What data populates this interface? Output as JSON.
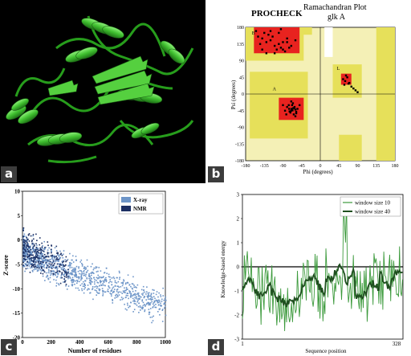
{
  "panels": {
    "a": {
      "label": "a"
    },
    "b": {
      "label": "b"
    },
    "c": {
      "label": "c"
    },
    "d": {
      "label": "d"
    }
  },
  "ramachandran": {
    "header": "PROCHECK",
    "title": "Ramachandran Plot",
    "subtitle": "glk A",
    "xlabel": "Phi (degrees)",
    "ylabel": "Psi (degrees)",
    "xticks": [
      "-180",
      "-135",
      "-90",
      "-45",
      "0",
      "45",
      "90",
      "135",
      "180"
    ],
    "yticks": [
      "180",
      "135",
      "90",
      "45",
      "0",
      "-45",
      "-90",
      "-135",
      "-180"
    ],
    "region_labels": [
      "B",
      "A",
      "L"
    ],
    "colors": {
      "core": "#e8231f",
      "allowed": "#e6e05a",
      "generous": "#f4f0b6",
      "points": "#000000"
    }
  },
  "zscore": {
    "ylabel": "Z-score",
    "xlabel": "Number of residues",
    "yticks": [
      "10",
      "5",
      "0",
      "-5",
      "-10",
      "-15",
      "-20"
    ],
    "xticks": [
      "0",
      "200",
      "400",
      "600",
      "800",
      "1000"
    ],
    "legend": [
      {
        "name": "X-ray",
        "color": "#6d95c8"
      },
      {
        "name": "NMR",
        "color": "#1c2f63"
      }
    ]
  },
  "energy": {
    "ylabel": "Knowledge-based energy",
    "xlabel": "Sequence position",
    "yticks": [
      "3",
      "2",
      "1",
      "0",
      "-1",
      "-2",
      "-3"
    ],
    "xticks": [
      "1",
      "328"
    ],
    "legend": [
      {
        "name": "window size 10",
        "color": "#3c9a3c"
      },
      {
        "name": "window size 40",
        "color": "#1f4f1f"
      }
    ]
  },
  "chart_data": [
    {
      "type": "scatter",
      "title": "Ramachandran Plot",
      "subtitle": "glk A",
      "xlabel": "Phi (degrees)",
      "ylabel": "Psi (degrees)",
      "xlim": [
        -180,
        180
      ],
      "ylim": [
        -180,
        180
      ],
      "grid": false,
      "series": [
        {
          "x": [
            -150,
            -140,
            -130,
            -120,
            -110,
            -100,
            -90,
            -80,
            -75,
            -70,
            -135,
            -125,
            -115,
            -105,
            -95,
            -85,
            -145,
            -120,
            -100,
            -80,
            -130,
            -110,
            -90,
            -155,
            -60,
            -140,
            -95
          ],
          "y": [
            155,
            150,
            140,
            145,
            130,
            135,
            140,
            150,
            125,
            130,
            165,
            160,
            155,
            120,
            125,
            115,
            135,
            170,
            165,
            140,
            110,
            110,
            120,
            170,
            145,
            120,
            175
          ]
        },
        {
          "x": [
            -75,
            -70,
            -65,
            -60,
            -68,
            -72,
            -62,
            -58,
            -66,
            -80,
            -85,
            -55,
            -64,
            -70,
            -76,
            -60,
            -90,
            -50,
            -67,
            -63,
            -74,
            -58,
            -82,
            -69
          ],
          "y": [
            -40,
            -45,
            -38,
            -42,
            -30,
            -50,
            -35,
            -48,
            -25,
            -35,
            -45,
            -40,
            -55,
            -20,
            -30,
            -60,
            -30,
            -30,
            -44,
            -38,
            -47,
            -52,
            -55,
            -40
          ]
        },
        {
          "x": [
            55,
            60,
            65,
            70,
            58,
            75,
            80,
            62,
            68,
            85,
            90
          ],
          "y": [
            40,
            35,
            45,
            30,
            25,
            20,
            15,
            50,
            28,
            10,
            5
          ]
        }
      ]
    },
    {
      "type": "scatter",
      "xlabel": "Number of residues",
      "ylabel": "Z-score",
      "xlim": [
        0,
        1000
      ],
      "ylim": [
        -20,
        10
      ],
      "series": [
        {
          "name": "X-ray",
          "x": [
            50,
            100,
            150,
            200,
            250,
            300,
            350,
            400,
            450,
            500,
            550,
            600,
            650,
            700,
            750,
            800,
            850,
            900,
            950,
            1000
          ],
          "y": [
            -3,
            -4.5,
            -5.5,
            -6,
            -6.5,
            -7,
            -7.5,
            -8,
            -8,
            -8.5,
            -9,
            -9.5,
            -10,
            -10,
            -10.5,
            -11,
            -11,
            -11.5,
            -12,
            -12
          ]
        },
        {
          "name": "NMR",
          "x": [
            20,
            50,
            80,
            110,
            140,
            170,
            200,
            250,
            300
          ],
          "y": [
            -1,
            -2,
            -3,
            -3.5,
            -4,
            -4.5,
            -5,
            -5.5,
            -6
          ]
        }
      ]
    },
    {
      "type": "line",
      "xlabel": "Sequence position",
      "ylabel": "Knowledge-based energy",
      "xlim": [
        1,
        328
      ],
      "ylim": [
        -3,
        3
      ],
      "series": [
        {
          "name": "window size 10"
        },
        {
          "name": "window size 40"
        }
      ]
    }
  ]
}
